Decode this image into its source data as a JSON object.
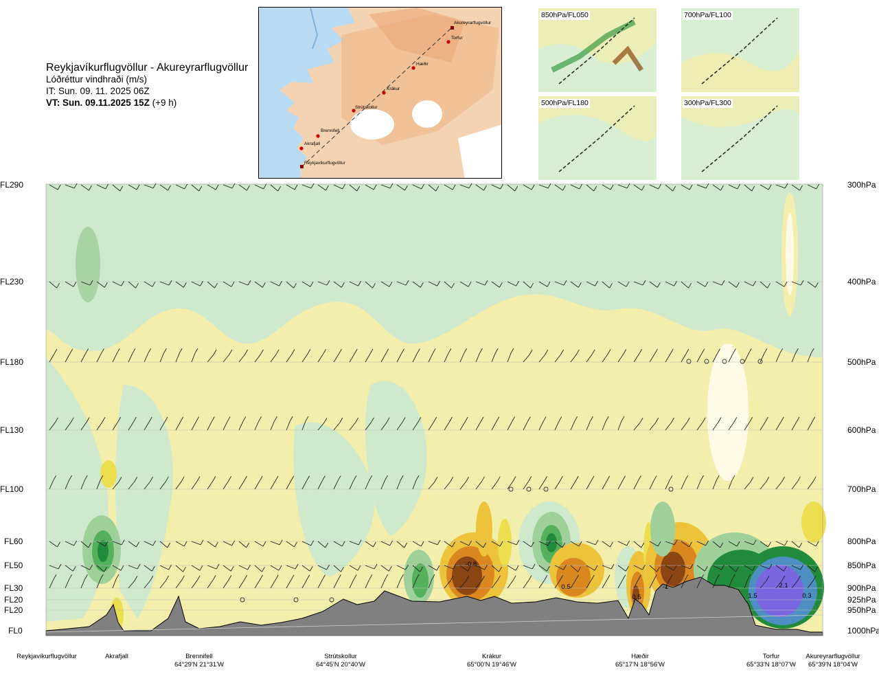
{
  "header": {
    "route_title": "Reykjavíkurflugvöllur - Akureyrarflugvöllur",
    "variable": "Lóðréttur vindhraði (m/s)",
    "initial_time": "IT: Sun. 09. 11. 2025 06Z",
    "valid_time_bold": "VT: Sun. 09.11.2025 15Z",
    "valid_time_offset": "(+9 h)"
  },
  "route_map": {
    "waypoints": [
      "Akureyrarflugvöllur",
      "Torfur",
      "Hæðir",
      "Krákur",
      "Strútskollur",
      "Brennifell",
      "Akrafjall",
      "Reykjavíkurflugvöllur"
    ]
  },
  "mini_maps": [
    {
      "label": "850hPa/FL050"
    },
    {
      "label": "700hPa/FL100"
    },
    {
      "label": "500hPa/FL180"
    },
    {
      "label": "300hPa/FL300"
    }
  ],
  "colors": {
    "green_light": "#cfe9cc",
    "yellow_light": "#f3eeac",
    "terrain": "#808080",
    "sea": "#b9dbf2",
    "land": "#f4c69d"
  },
  "chart_data": {
    "type": "heatmap",
    "title": "Reykjavíkurflugvöllur - Akureyrarflugvöllur",
    "variable": "Lóðréttur vindhraði (m/s)",
    "y_left_ticks": [
      "FL290",
      "FL230",
      "FL180",
      "FL130",
      "FL100",
      "FL60",
      "FL50",
      "FL30",
      "FL20",
      "FL20",
      "FL0"
    ],
    "y_right_ticks": [
      "300hPa",
      "400hPa",
      "500hPa",
      "600hPa",
      "700hPa",
      "800hPa",
      "850hPa",
      "900hPa",
      "925hPa",
      "950hPa",
      "1000hPa"
    ],
    "pressure_levels_hpa": [
      300,
      400,
      500,
      600,
      700,
      800,
      850,
      900,
      925,
      950,
      1000
    ],
    "locations": [
      {
        "name": "Reykjavíkurflugvöllur",
        "coord": ""
      },
      {
        "name": "Akrafjall",
        "coord": ""
      },
      {
        "name": "Brennifell",
        "coord": "64°29'N 21°31'W"
      },
      {
        "name": "Strútskollur",
        "coord": "64°45'N 20°40'W"
      },
      {
        "name": "Krákur",
        "coord": "65°00'N 19°46'W"
      },
      {
        "name": "Hæðir",
        "coord": "65°17'N 18°56'W"
      },
      {
        "name": "Torfur",
        "coord": "65°33'N 18°07'W"
      },
      {
        "name": "Akureyrarflugvöllur",
        "coord": "65°39'N 18°04'W"
      }
    ],
    "contour_labels": [
      "-0.8",
      "0.5",
      "0.5",
      "-1",
      "2.1",
      "1.5",
      "0.3"
    ]
  }
}
